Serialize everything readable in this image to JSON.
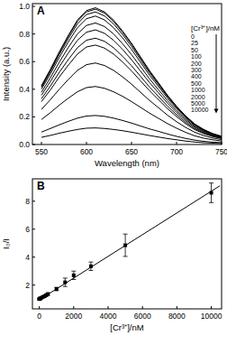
{
  "chart_data": [
    {
      "type": "line",
      "label": "A",
      "x_label": "Wavelength (nm)",
      "y_label": "Intensity (a.u.)",
      "x": [
        550,
        560,
        570,
        580,
        590,
        600,
        610,
        620,
        630,
        640,
        650,
        660,
        670,
        680,
        690,
        700,
        710,
        720,
        730,
        740,
        750
      ],
      "xlim": [
        540,
        750
      ],
      "xticks": [
        550,
        600,
        650,
        700,
        750
      ],
      "ylim": [
        0,
        1.02
      ],
      "yticks": [
        {
          "value": 0,
          "label": "0.0"
        },
        {
          "value": 0.2,
          "label": "0.2"
        },
        {
          "value": 0.4,
          "label": "0.4"
        },
        {
          "value": 0.6,
          "label": "0.6"
        },
        {
          "value": 0.8,
          "label": "0.8"
        },
        {
          "value": 1.0,
          "label": "1.0"
        }
      ],
      "legend": "upper right",
      "legend_title": "[Cr³⁺]/nM",
      "series": [
        {
          "name": "0",
          "color": "#000000",
          "values": [
            0.426,
            0.545,
            0.673,
            0.792,
            0.901,
            0.97,
            0.99,
            0.96,
            0.901,
            0.822,
            0.733,
            0.634,
            0.535,
            0.446,
            0.356,
            0.277,
            0.208,
            0.149,
            0.109,
            0.079,
            0.059
          ]
        },
        {
          "name": "25",
          "color": "#000000",
          "values": [
            0.421,
            0.539,
            0.666,
            0.784,
            0.892,
            0.96,
            0.98,
            0.951,
            0.892,
            0.813,
            0.725,
            0.627,
            0.529,
            0.441,
            0.353,
            0.274,
            0.206,
            0.147,
            0.108,
            0.078,
            0.059
          ]
        },
        {
          "name": "50",
          "color": "#000000",
          "values": [
            0.413,
            0.528,
            0.653,
            0.768,
            0.874,
            0.941,
            0.96,
            0.931,
            0.874,
            0.797,
            0.71,
            0.614,
            0.518,
            0.432,
            0.346,
            0.269,
            0.202,
            0.144,
            0.106,
            0.077,
            0.058
          ]
        },
        {
          "name": "100",
          "color": "#000000",
          "values": [
            0.4,
            0.512,
            0.632,
            0.744,
            0.846,
            0.911,
            0.93,
            0.902,
            0.846,
            0.772,
            0.688,
            0.595,
            0.502,
            0.419,
            0.335,
            0.26,
            0.195,
            0.14,
            0.102,
            0.074,
            0.056
          ]
        },
        {
          "name": "200",
          "color": "#000000",
          "values": [
            0.378,
            0.484,
            0.598,
            0.704,
            0.801,
            0.862,
            0.88,
            0.854,
            0.801,
            0.73,
            0.651,
            0.563,
            0.475,
            0.396,
            0.317,
            0.246,
            0.185,
            0.132,
            0.097,
            0.07,
            0.053
          ]
        },
        {
          "name": "300",
          "color": "#000000",
          "values": [
            0.357,
            0.457,
            0.564,
            0.664,
            0.755,
            0.813,
            0.83,
            0.805,
            0.755,
            0.689,
            0.614,
            0.531,
            0.448,
            0.374,
            0.299,
            0.232,
            0.174,
            0.125,
            0.091,
            0.066,
            0.05
          ]
        },
        {
          "name": "400",
          "color": "#000000",
          "values": [
            0.331,
            0.424,
            0.524,
            0.616,
            0.701,
            0.755,
            0.77,
            0.747,
            0.701,
            0.639,
            0.57,
            0.493,
            0.416,
            0.347,
            0.277,
            0.216,
            0.162,
            0.116,
            0.085,
            0.062,
            0.046
          ]
        },
        {
          "name": "500",
          "color": "#000000",
          "values": [
            0.31,
            0.396,
            0.49,
            0.576,
            0.655,
            0.706,
            0.72,
            0.698,
            0.655,
            0.598,
            0.533,
            0.461,
            0.389,
            0.324,
            0.259,
            0.202,
            0.151,
            0.108,
            0.079,
            0.058,
            0.043
          ]
        },
        {
          "name": "1000",
          "color": "#000000",
          "values": [
            0.254,
            0.325,
            0.401,
            0.472,
            0.537,
            0.578,
            0.59,
            0.572,
            0.537,
            0.49,
            0.437,
            0.378,
            0.319,
            0.266,
            0.212,
            0.165,
            0.124,
            0.089,
            0.065,
            0.047,
            0.035
          ]
        },
        {
          "name": "2000",
          "color": "#000000",
          "values": [
            0.181,
            0.231,
            0.286,
            0.336,
            0.382,
            0.412,
            0.42,
            0.407,
            0.382,
            0.349,
            0.311,
            0.269,
            0.227,
            0.189,
            0.151,
            0.118,
            0.088,
            0.063,
            0.046,
            0.034,
            0.025
          ]
        },
        {
          "name": "5000",
          "color": "#000000",
          "values": [
            0.09,
            0.116,
            0.143,
            0.168,
            0.191,
            0.206,
            0.21,
            0.204,
            0.191,
            0.174,
            0.155,
            0.134,
            0.113,
            0.095,
            0.076,
            0.059,
            0.044,
            0.032,
            0.023,
            0.017,
            0.013
          ]
        },
        {
          "name": "10000",
          "color": "#000000",
          "values": [
            0.052,
            0.066,
            0.082,
            0.096,
            0.109,
            0.118,
            0.12,
            0.116,
            0.109,
            0.1,
            0.089,
            0.077,
            0.065,
            0.054,
            0.043,
            0.034,
            0.025,
            0.018,
            0.013,
            0.01,
            0.007
          ]
        }
      ]
    },
    {
      "type": "scatter",
      "label": "B",
      "x_label": "[Cr³⁺]/nM",
      "y_label": "I₀/I",
      "xlim": [
        -400,
        10600
      ],
      "xticks": [
        0,
        2000,
        4000,
        6000,
        8000,
        10000
      ],
      "ylim": [
        0.3,
        9.6
      ],
      "yticks": [
        2,
        4,
        6,
        8
      ],
      "series": [
        {
          "type": "scatter",
          "marker": "square",
          "color": "#000000",
          "x": [
            0,
            25,
            50,
            100,
            200,
            300,
            400,
            500,
            1000,
            1500,
            2000,
            3000,
            5000,
            10000
          ],
          "values": [
            1.0,
            1.02,
            1.04,
            1.08,
            1.15,
            1.2,
            1.28,
            1.36,
            1.72,
            2.2,
            2.7,
            3.35,
            4.85,
            8.6
          ],
          "errors": [
            0.05,
            0.05,
            0.05,
            0.05,
            0.05,
            0.06,
            0.06,
            0.08,
            0.12,
            0.3,
            0.3,
            0.3,
            0.8,
            0.7
          ]
        },
        {
          "type": "line",
          "color": "#000000",
          "x": [
            0,
            10500
          ],
          "values": [
            0.95,
            9.1
          ]
        }
      ]
    }
  ]
}
